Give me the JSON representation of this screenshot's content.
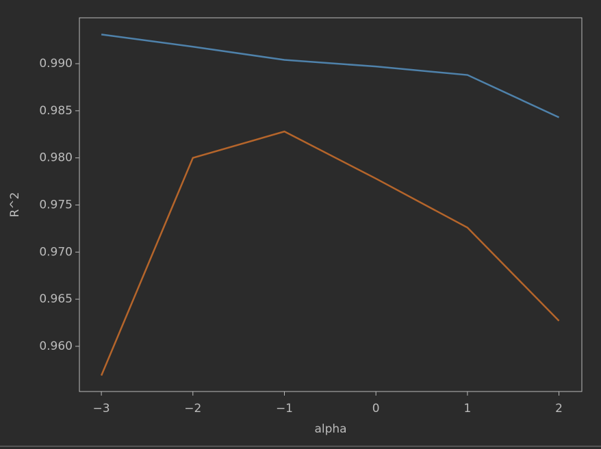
{
  "chart_data": {
    "type": "line",
    "x_label": "alpha",
    "y_label": "R^2",
    "x": [
      -3,
      -2,
      -1,
      0,
      1,
      2
    ],
    "series": [
      {
        "color": "#4f82ab",
        "values": [
          0.9931,
          0.9918,
          0.9904,
          0.9897,
          0.9888,
          0.9843
        ]
      },
      {
        "color": "#b5652b",
        "values": [
          0.9569,
          0.98,
          0.9828,
          0.9778,
          0.9726,
          0.9627
        ]
      }
    ],
    "xlim": [
      -3.24,
      2.25
    ],
    "ylim": [
      0.9552,
      0.99487
    ],
    "xticks": [
      {
        "value": -3,
        "label": "−3"
      },
      {
        "value": -2,
        "label": "−2"
      },
      {
        "value": -1,
        "label": "−1"
      },
      0,
      1,
      2
    ],
    "yticks": [
      {
        "value": 0.96,
        "label": "0.960"
      },
      0.965,
      {
        "value": 0.97,
        "label": "0.970"
      },
      0.975,
      {
        "value": 0.98,
        "label": "0.980"
      },
      0.985,
      {
        "value": 0.99,
        "label": "0.990"
      }
    ],
    "grid": false
  }
}
